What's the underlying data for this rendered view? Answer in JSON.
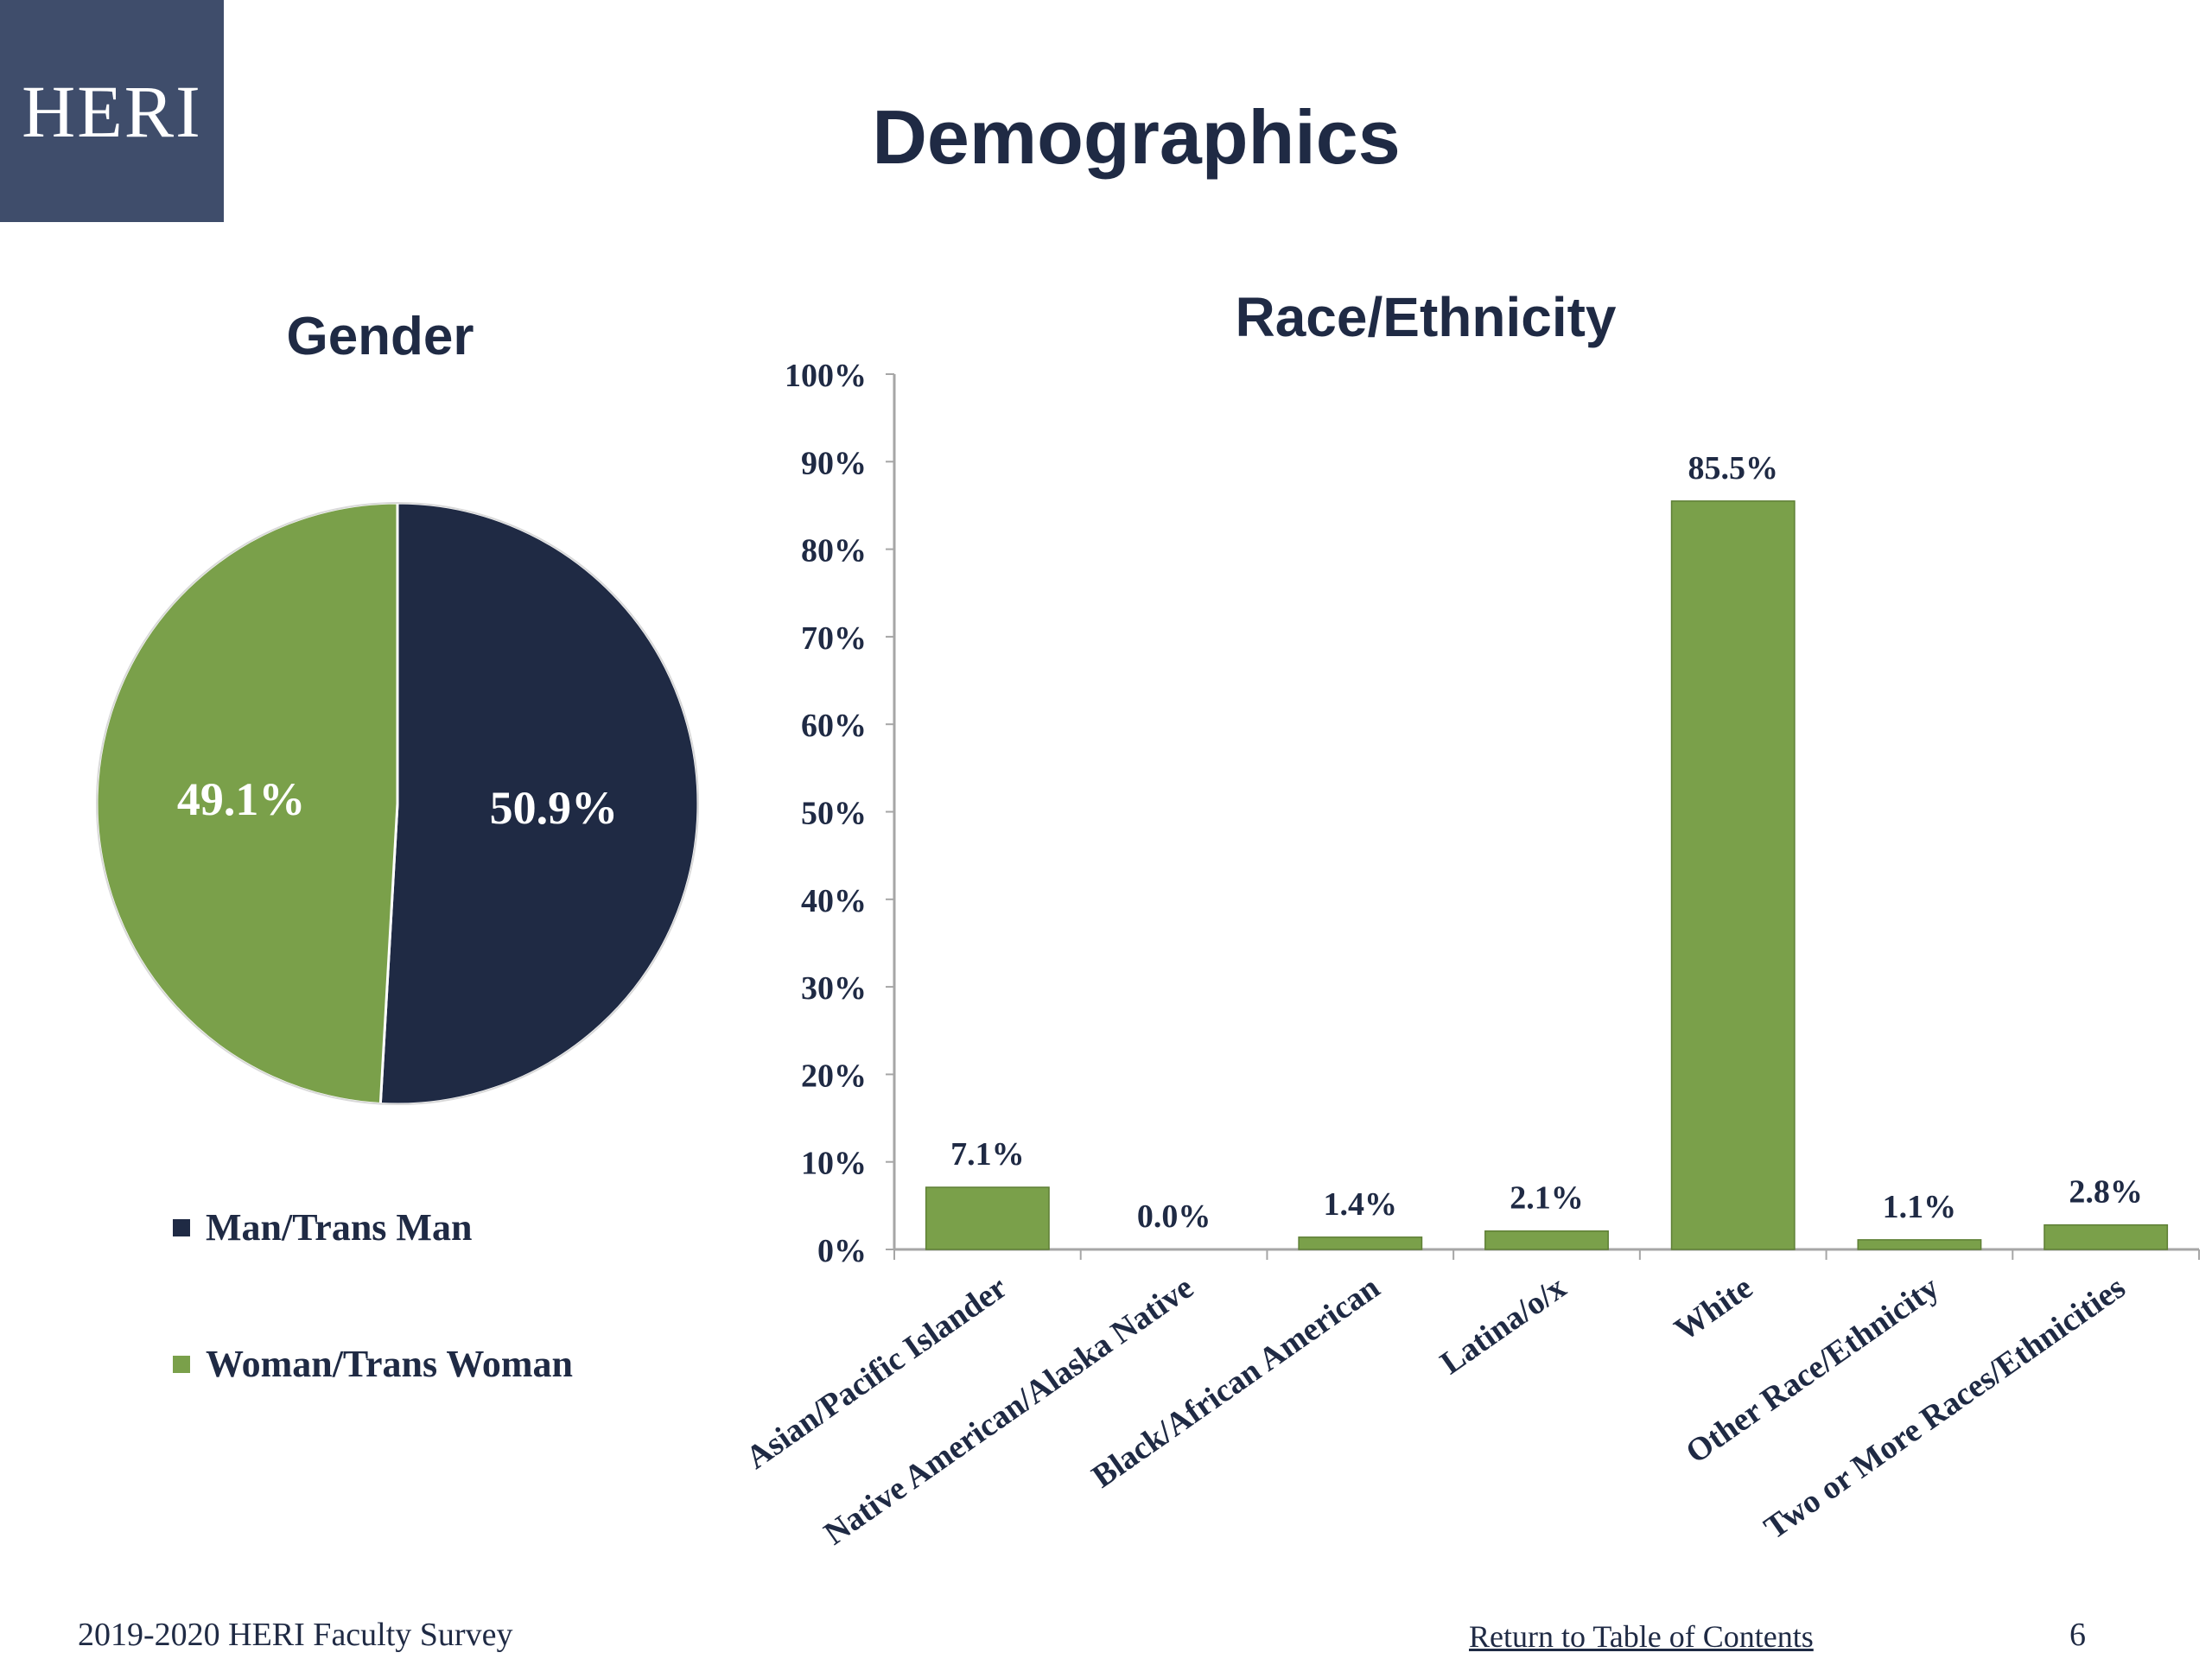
{
  "logo": {
    "text": "HERI"
  },
  "page": {
    "title": "Demographics"
  },
  "colors": {
    "navy": "#1f2a44",
    "green": "#7aa04a",
    "logo_bg": "#3f4d6b"
  },
  "footer": {
    "survey": "2019-2020 HERI Faculty Survey",
    "link": "Return to Table of Contents",
    "page_number": "6"
  },
  "chart_data": [
    {
      "type": "pie",
      "title": "Gender",
      "slices": [
        {
          "label": "Man/Trans Man",
          "value": 50.9,
          "display": "50.9%",
          "color": "#1f2a44"
        },
        {
          "label": "Woman/Trans Woman",
          "value": 49.1,
          "display": "49.1%",
          "color": "#7aa04a"
        }
      ],
      "legend_position": "bottom-left"
    },
    {
      "type": "bar",
      "title": "Race/Ethnicity",
      "categories": [
        "Asian/Pacific Islander",
        "Native American/Alaska Native",
        "Black/African American",
        "Latina/o/x",
        "White",
        "Other Race/Ethnicity",
        "Two or More Races/Ethnicities"
      ],
      "values": [
        7.1,
        0.0,
        1.4,
        2.1,
        85.5,
        1.1,
        2.8
      ],
      "value_labels": [
        "7.1%",
        "0.0%",
        "1.4%",
        "2.1%",
        "85.5%",
        "1.1%",
        "2.8%"
      ],
      "ylim": [
        0,
        100
      ],
      "yticks": [
        "0%",
        "10%",
        "20%",
        "30%",
        "40%",
        "50%",
        "60%",
        "70%",
        "80%",
        "90%",
        "100%"
      ],
      "color": "#7aa04a",
      "grid": false
    }
  ]
}
